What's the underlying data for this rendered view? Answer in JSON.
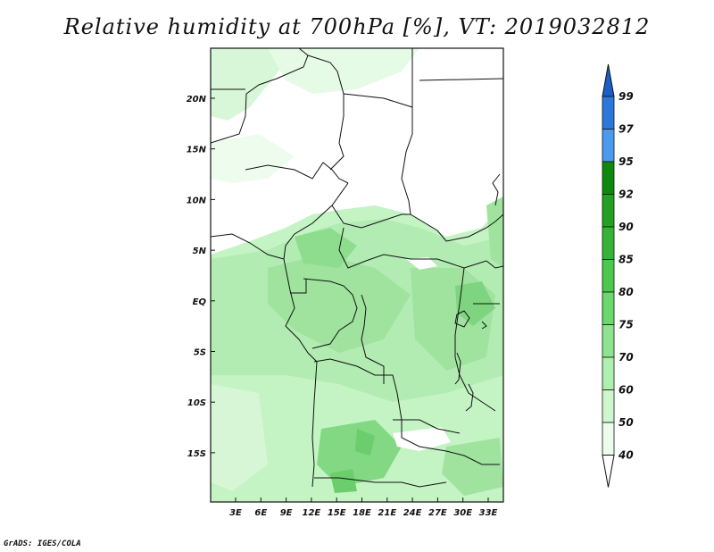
{
  "title": "Relative humidity at 700hPa [%], VT: 2019032812",
  "credit": "GrADS: IGES/COLA",
  "map": {
    "lon_ticks": [
      "3E",
      "6E",
      "9E",
      "12E",
      "15E",
      "18E",
      "21E",
      "24E",
      "27E",
      "30E",
      "33E"
    ],
    "lat_ticks": [
      "20N",
      "15N",
      "10N",
      "5N",
      "EQ",
      "5S",
      "10S",
      "15S"
    ]
  },
  "colorbar": {
    "levels": [
      "99",
      "97",
      "95",
      "92",
      "90",
      "85",
      "80",
      "75",
      "70",
      "60",
      "50",
      "40"
    ],
    "colors": [
      "#1a5fc8",
      "#2b78dc",
      "#4a9bf0",
      "#0d8a0d",
      "#22a022",
      "#36b336",
      "#4cc84c",
      "#6bd86b",
      "#8ee48e",
      "#aef0ae",
      "#cff7cf",
      "#ebfdeb"
    ]
  }
}
